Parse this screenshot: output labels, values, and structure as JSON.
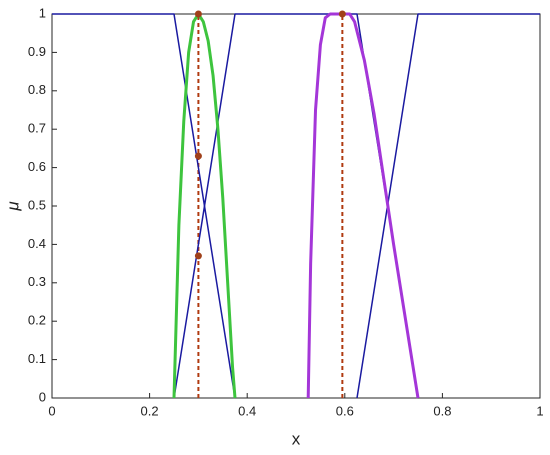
{
  "chart_data": {
    "type": "line",
    "xlabel": "x",
    "ylabel": "μ",
    "xlim": [
      0,
      1
    ],
    "xticks": [
      0,
      0.2,
      0.4,
      0.6,
      0.8,
      1
    ],
    "ylim": [
      0,
      1
    ],
    "yticks": [
      0,
      0.1,
      0.2,
      0.3,
      0.4,
      0.5,
      0.6,
      0.7,
      0.8,
      0.9,
      1
    ],
    "series": [
      {
        "color": "#1a1aa0",
        "x": [
          0,
          0.25,
          0.375
        ],
        "values": [
          1,
          1,
          0
        ]
      },
      {
        "color": "#1a1aa0",
        "x": [
          0.25,
          0.375,
          0.625,
          0.75
        ],
        "values": [
          0,
          1,
          1,
          0
        ]
      },
      {
        "color": "#1a1aa0",
        "x": [
          0.625,
          0.75,
          1
        ],
        "values": [
          0,
          1,
          1
        ]
      },
      {
        "color": "#3ec43e",
        "x": [
          0.25,
          0.26,
          0.27,
          0.28,
          0.29,
          0.3,
          0.31,
          0.32,
          0.33,
          0.34,
          0.35,
          0.36,
          0.37,
          0.375
        ],
        "values": [
          0,
          0.45,
          0.72,
          0.9,
          0.98,
          1,
          0.98,
          0.93,
          0.84,
          0.7,
          0.52,
          0.3,
          0.08,
          0
        ]
      },
      {
        "color": "#a436d8",
        "x": [
          0.525,
          0.53,
          0.54,
          0.55,
          0.56,
          0.57,
          0.61,
          0.62,
          0.64,
          0.66,
          0.68,
          0.7,
          0.72,
          0.74,
          0.75
        ],
        "values": [
          0,
          0.35,
          0.75,
          0.92,
          0.99,
          1,
          1,
          0.98,
          0.88,
          0.74,
          0.57,
          0.4,
          0.24,
          0.08,
          0
        ]
      }
    ],
    "reference_lines": {
      "color": "#b03a10",
      "x": [
        0.3,
        0.595
      ],
      "values": [
        1,
        1
      ]
    },
    "points": {
      "color": "#a0401a",
      "x": [
        0.3,
        0.3,
        0.3,
        0.595
      ],
      "values": [
        1,
        0.63,
        0.37,
        1
      ]
    }
  }
}
